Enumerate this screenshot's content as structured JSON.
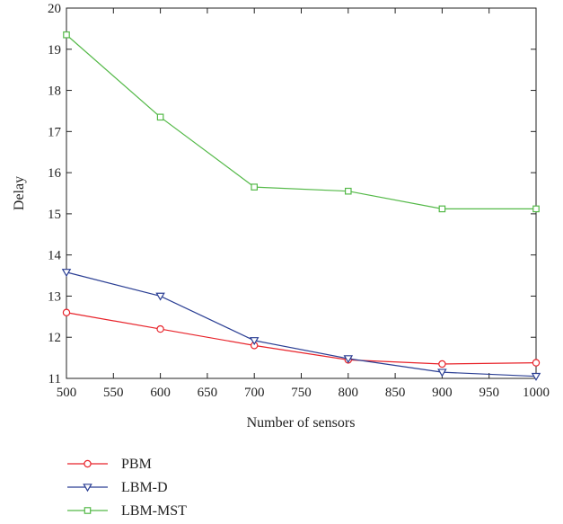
{
  "chart_data": {
    "type": "line",
    "xlabel": "Number of sensors",
    "ylabel": "Delay",
    "xlim": [
      500,
      1000
    ],
    "ylim": [
      11,
      20
    ],
    "xticks": [
      "500",
      "550",
      "600",
      "650",
      "700",
      "750",
      "800",
      "850",
      "900",
      "950",
      "1000"
    ],
    "yticks": [
      "11",
      "12",
      "13",
      "14",
      "15",
      "16",
      "17",
      "18",
      "19",
      "20"
    ],
    "grid": false,
    "legend_position": "bottom-left",
    "x": [
      500,
      600,
      700,
      800,
      900,
      1000
    ],
    "series": [
      {
        "name": "PBM",
        "values": [
          12.6,
          12.2,
          11.8,
          11.45,
          11.35,
          11.38
        ],
        "color": "#e8232a",
        "marker": "circle"
      },
      {
        "name": "LBM-D",
        "values": [
          13.58,
          13.0,
          11.92,
          11.48,
          11.15,
          11.05
        ],
        "color": "#2b3f94",
        "marker": "triangle-down"
      },
      {
        "name": "LBM-MST",
        "values": [
          19.35,
          17.35,
          15.65,
          15.55,
          15.12,
          15.12
        ],
        "color": "#54b948",
        "marker": "square"
      }
    ]
  }
}
